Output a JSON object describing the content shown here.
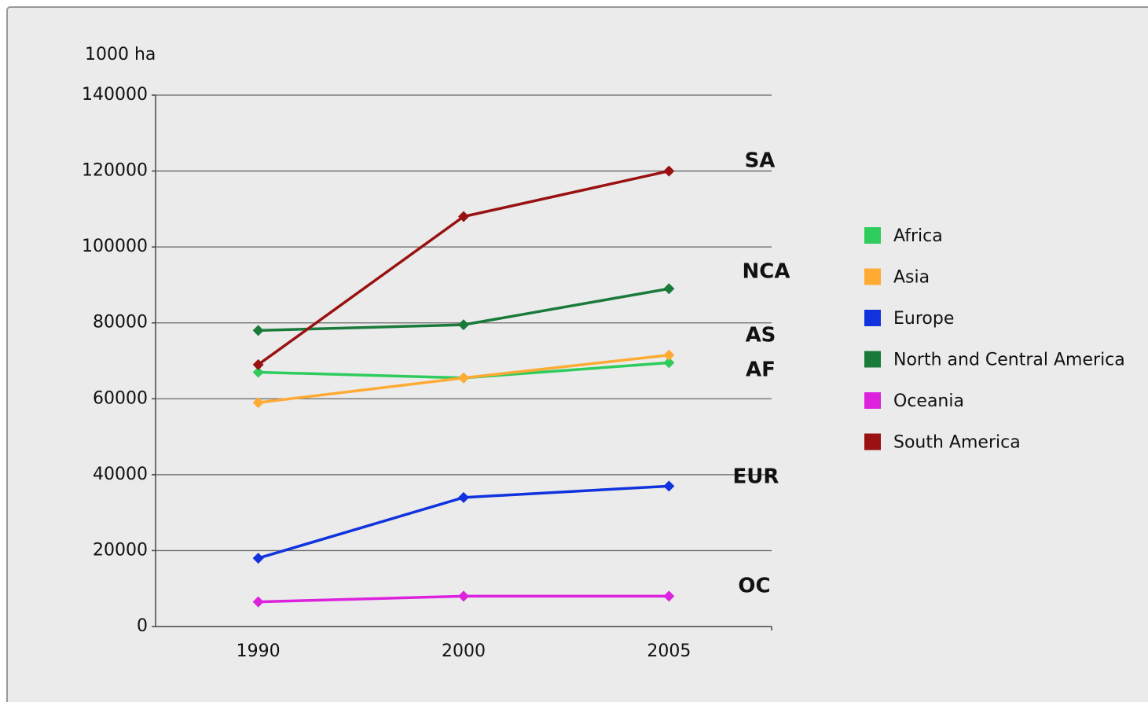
{
  "chart_data": {
    "type": "line",
    "y_label": "1000 ha",
    "categories": [
      "1990",
      "2000",
      "2005"
    ],
    "series": [
      {
        "name": "Africa",
        "color": "#2ecc5c",
        "values": [
          67000,
          65500,
          69500
        ]
      },
      {
        "name": "Asia",
        "color": "#ffaa33",
        "values": [
          59000,
          65500,
          71500
        ]
      },
      {
        "name": "Europe",
        "color": "#1133dd",
        "values": [
          18000,
          34000,
          37000
        ]
      },
      {
        "name": "North and Central America",
        "color": "#1a7a3a",
        "values": [
          78000,
          79500,
          89000
        ]
      },
      {
        "name": "Oceania",
        "color": "#dd22dd",
        "values": [
          6500,
          8000,
          8000
        ]
      },
      {
        "name": "South America",
        "color": "#991111",
        "values": [
          69000,
          108000,
          120000
        ]
      }
    ],
    "annotations": [
      "SA",
      "NCA",
      "AS",
      "AF",
      "EUR",
      "OC"
    ],
    "ylim": [
      0,
      140000
    ],
    "yticks": [
      0,
      20000,
      40000,
      60000,
      80000,
      100000,
      120000,
      140000
    ],
    "grid": true,
    "legend": "right"
  }
}
